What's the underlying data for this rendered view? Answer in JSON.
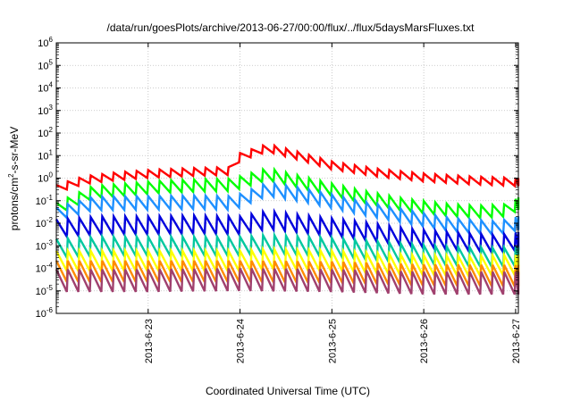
{
  "chart_data": {
    "type": "line",
    "title": "/data/run/goesPlots/archive/2013-06-27/00:00/flux/../flux/5daysMarsFluxes.txt",
    "xlabel": "Coordinated Universal Time (UTC)",
    "ylabel_parts": [
      "protons/cm",
      "2",
      "-s-sr-MeV"
    ],
    "yscale": "log",
    "ylim_exp": [
      -6,
      6
    ],
    "y_ticks": [
      {
        "base": "10",
        "exp": "-6",
        "value": 1e-06
      },
      {
        "base": "10",
        "exp": "-5",
        "value": 1e-05
      },
      {
        "base": "10",
        "exp": "-4",
        "value": 0.0001
      },
      {
        "base": "10",
        "exp": "-3",
        "value": 0.001
      },
      {
        "base": "10",
        "exp": "-2",
        "value": 0.01
      },
      {
        "base": "10",
        "exp": "-1",
        "value": 0.1
      },
      {
        "base": "10",
        "exp": "0",
        "value": 1.0
      },
      {
        "base": "10",
        "exp": "1",
        "value": 10.0
      },
      {
        "base": "10",
        "exp": "2",
        "value": 100.0
      },
      {
        "base": "10",
        "exp": "3",
        "value": 1000.0
      },
      {
        "base": "10",
        "exp": "4",
        "value": 10000.0
      },
      {
        "base": "10",
        "exp": "5",
        "value": 100000.0
      },
      {
        "base": "10",
        "exp": "6",
        "value": 1000000.0
      }
    ],
    "x_ticks": [
      {
        "label": "2013-6-23",
        "day": 1.0
      },
      {
        "label": "2013-6-24",
        "day": 2.0
      },
      {
        "label": "2013-6-25",
        "day": 3.0
      },
      {
        "label": "2013-6-26",
        "day": 4.0
      },
      {
        "label": "2013-6-27",
        "day": 5.0
      }
    ],
    "x_range_days_from_2013_6_22": [
      0.0,
      5.03
    ],
    "grid": true,
    "sawtooth_period_days": 0.125,
    "series": [
      {
        "color": "#ff0000",
        "dip_decades": 0.35,
        "envelope": [
          [
            0.0,
            0.5
          ],
          [
            0.3,
            1.2
          ],
          [
            0.6,
            1.7
          ],
          [
            1.0,
            2.3
          ],
          [
            1.5,
            2.8
          ],
          [
            1.9,
            3.1
          ],
          [
            2.0,
            13
          ],
          [
            2.3,
            33
          ],
          [
            2.6,
            16
          ],
          [
            3.0,
            5.5
          ],
          [
            3.5,
            2.6
          ],
          [
            4.0,
            1.6
          ],
          [
            4.5,
            1.2
          ],
          [
            5.03,
            1.0
          ]
        ]
      },
      {
        "color": "#00ff00",
        "dip_decades": 0.55,
        "envelope": [
          [
            0.0,
            0.08
          ],
          [
            0.4,
            0.45
          ],
          [
            0.8,
            0.6
          ],
          [
            1.2,
            0.8
          ],
          [
            1.6,
            0.9
          ],
          [
            1.9,
            0.95
          ],
          [
            2.0,
            1.2
          ],
          [
            2.3,
            2.8
          ],
          [
            2.8,
            0.9
          ],
          [
            3.3,
            0.3
          ],
          [
            3.8,
            0.12
          ],
          [
            4.3,
            0.07
          ],
          [
            4.6,
            0.06
          ],
          [
            4.9,
            0.07
          ],
          [
            5.03,
            0.14
          ]
        ]
      },
      {
        "color": "#1e90ff",
        "dip_decades": 0.6,
        "envelope": [
          [
            0.0,
            0.05
          ],
          [
            0.4,
            0.15
          ],
          [
            1.0,
            0.16
          ],
          [
            1.5,
            0.17
          ],
          [
            1.9,
            0.16
          ],
          [
            2.0,
            0.2
          ],
          [
            2.3,
            0.65
          ],
          [
            2.7,
            0.35
          ],
          [
            3.3,
            0.1
          ],
          [
            3.8,
            0.04
          ],
          [
            4.3,
            0.017
          ],
          [
            4.8,
            0.012
          ],
          [
            5.03,
            0.02
          ]
        ]
      },
      {
        "color": "#0000dd",
        "dip_decades": 0.8,
        "envelope": [
          [
            0.0,
            0.015
          ],
          [
            0.5,
            0.02
          ],
          [
            1.0,
            0.02
          ],
          [
            1.5,
            0.022
          ],
          [
            1.9,
            0.02
          ],
          [
            2.0,
            0.02
          ],
          [
            2.3,
            0.035
          ],
          [
            2.8,
            0.02
          ],
          [
            3.3,
            0.012
          ],
          [
            3.8,
            0.006
          ],
          [
            4.3,
            0.004
          ],
          [
            4.8,
            0.003
          ],
          [
            5.03,
            0.004
          ]
        ]
      },
      {
        "color": "#00c8a0",
        "dip_decades": 0.85,
        "envelope": [
          [
            0.0,
            0.002
          ],
          [
            0.5,
            0.0025
          ],
          [
            1.0,
            0.0025
          ],
          [
            1.5,
            0.0025
          ],
          [
            2.0,
            0.0025
          ],
          [
            2.3,
            0.003
          ],
          [
            2.8,
            0.0025
          ],
          [
            3.3,
            0.0018
          ],
          [
            3.8,
            0.0012
          ],
          [
            4.3,
            0.0009
          ],
          [
            4.8,
            0.0008
          ],
          [
            5.03,
            0.0009
          ]
        ]
      },
      {
        "color": "#ffff00",
        "dip_decades": 0.9,
        "envelope": [
          [
            0.0,
            0.0006
          ],
          [
            1.0,
            0.0006
          ],
          [
            2.0,
            0.0006
          ],
          [
            2.3,
            0.0007
          ],
          [
            3.0,
            0.0006
          ],
          [
            3.8,
            0.0004
          ],
          [
            4.5,
            0.00035
          ],
          [
            5.03,
            0.0004
          ]
        ]
      },
      {
        "color": "#ff8c00",
        "dip_decades": 0.95,
        "envelope": [
          [
            0.0,
            0.00022
          ],
          [
            1.0,
            0.00022
          ],
          [
            2.0,
            0.00022
          ],
          [
            3.0,
            0.0002
          ],
          [
            4.0,
            0.00015
          ],
          [
            5.03,
            0.00014
          ]
        ]
      },
      {
        "color": "#a0406e",
        "dip_decades": 1.0,
        "envelope": [
          [
            0.0,
            9e-05
          ],
          [
            1.0,
            9e-05
          ],
          [
            2.0,
            0.0001
          ],
          [
            3.0,
            9e-05
          ],
          [
            4.0,
            7e-05
          ],
          [
            5.03,
            7e-05
          ]
        ]
      }
    ]
  }
}
